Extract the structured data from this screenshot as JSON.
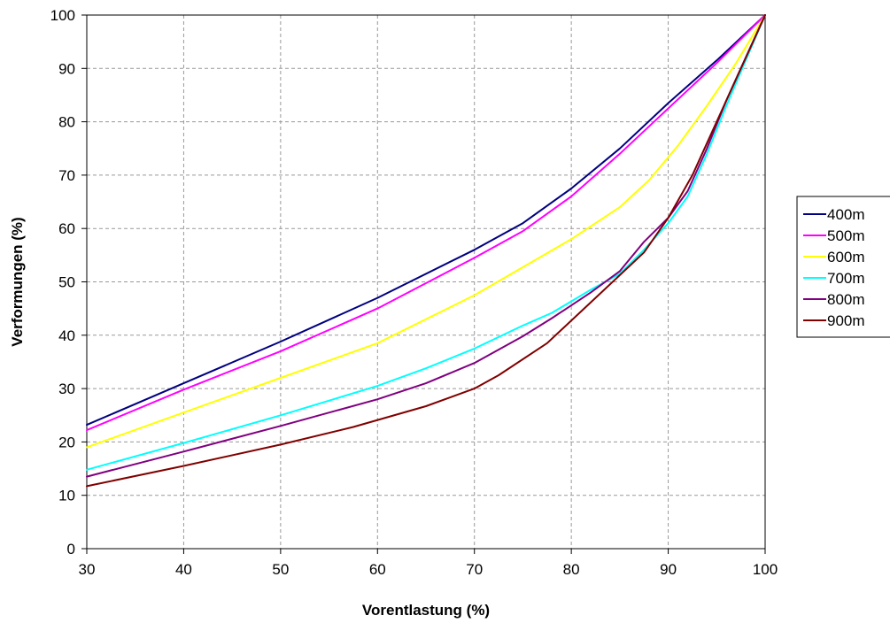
{
  "chart_data": {
    "type": "line",
    "xlabel": "Vorentlastung (%)",
    "ylabel": "Verformungen (%)",
    "xlim": [
      30,
      100
    ],
    "ylim": [
      0,
      100
    ],
    "xticks": [
      "30",
      "40",
      "50",
      "60",
      "70",
      "80",
      "90",
      "100"
    ],
    "yticks": [
      "0",
      "10",
      "20",
      "30",
      "40",
      "50",
      "60",
      "70",
      "80",
      "90",
      "100"
    ],
    "grid": true,
    "legend_position": "right",
    "series": [
      {
        "name": "400m",
        "color": "#000080",
        "x": [
          30,
          40,
          50,
          60,
          70,
          75,
          80,
          85,
          90,
          95,
          100
        ],
        "y": [
          23.2,
          31,
          38.8,
          47,
          56,
          61,
          67.5,
          75,
          83.5,
          91.5,
          100
        ]
      },
      {
        "name": "500m",
        "color": "#ff00ff",
        "x": [
          30,
          40,
          50,
          60,
          70,
          75,
          80,
          85,
          90,
          95,
          100
        ],
        "y": [
          22.2,
          29.8,
          37,
          45,
          54.5,
          59.5,
          66,
          74,
          82.5,
          91,
          100
        ]
      },
      {
        "name": "600m",
        "color": "#ffff00",
        "x": [
          30,
          40,
          50,
          60,
          70,
          80,
          85,
          88,
          91,
          94,
          97,
          100
        ],
        "y": [
          19,
          25.5,
          32,
          38.5,
          47.5,
          58,
          64,
          69,
          75.5,
          83,
          91,
          100
        ]
      },
      {
        "name": "700m",
        "color": "#00ffff",
        "x": [
          30,
          40,
          50,
          60,
          65,
          70,
          75,
          78,
          82,
          85,
          87.5,
          90,
          92,
          94,
          96,
          98,
          100
        ],
        "y": [
          14.8,
          19.8,
          25,
          30.5,
          33.8,
          37.5,
          41.8,
          44.2,
          48.5,
          51.5,
          56,
          61,
          66,
          74,
          83,
          91.5,
          100
        ]
      },
      {
        "name": "800m",
        "color": "#800080",
        "x": [
          30,
          40,
          50,
          60,
          65,
          70,
          75,
          78,
          82,
          85,
          87.5,
          90,
          92,
          94,
          96,
          98,
          100
        ],
        "y": [
          13.5,
          18.2,
          23,
          28,
          31,
          34.8,
          39.8,
          43.2,
          48,
          52,
          57.5,
          62,
          67,
          75,
          84,
          92,
          100
        ]
      },
      {
        "name": "900m",
        "color": "#800000",
        "x": [
          30,
          40,
          50,
          57.5,
          65,
          70,
          72.5,
          77.5,
          82.5,
          87.5,
          90,
          92.5,
          95,
          97.5,
          100
        ],
        "y": [
          11.7,
          15.5,
          19.5,
          22.8,
          26.7,
          30,
          32.5,
          38.5,
          47,
          55.5,
          62,
          70,
          80,
          90,
          100
        ]
      }
    ]
  }
}
